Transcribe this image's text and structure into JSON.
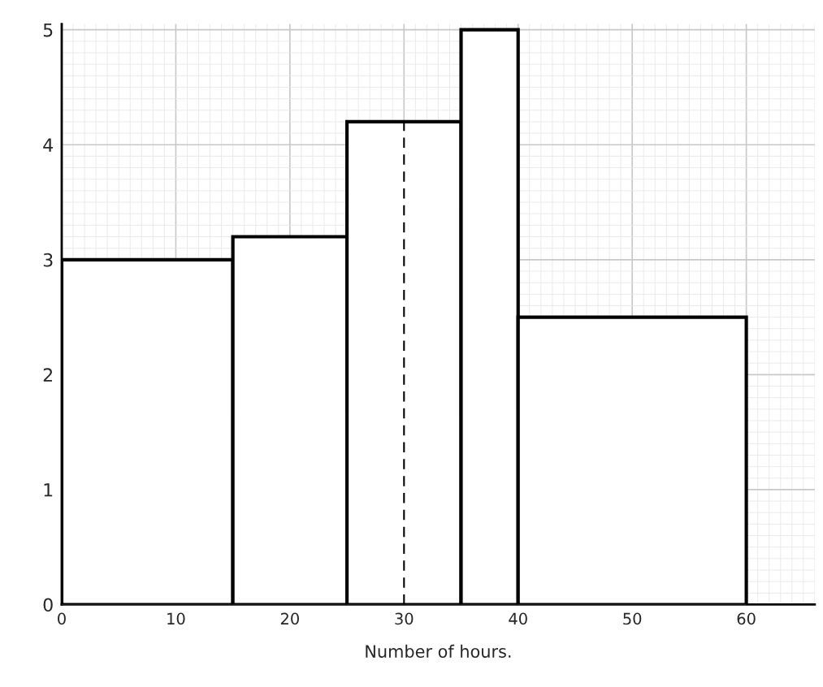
{
  "chart_data": {
    "type": "histogram",
    "xlabel": "Number of hours.",
    "bins": [
      0,
      15,
      25,
      35,
      40,
      60
    ],
    "values": [
      3,
      3.2,
      4.2,
      5,
      2.5
    ],
    "color": "#ffffff",
    "xlim": [
      0,
      66
    ],
    "ylim": [
      0,
      5.05
    ],
    "xticks": [
      0,
      10,
      20,
      30,
      40,
      50,
      60
    ],
    "yticks": [
      0,
      1,
      2,
      3,
      4,
      5
    ],
    "ref_lines": [
      {
        "axis": "x",
        "value": 30,
        "line_style": "dashed",
        "color": "#000000"
      }
    ],
    "grid": true
  }
}
